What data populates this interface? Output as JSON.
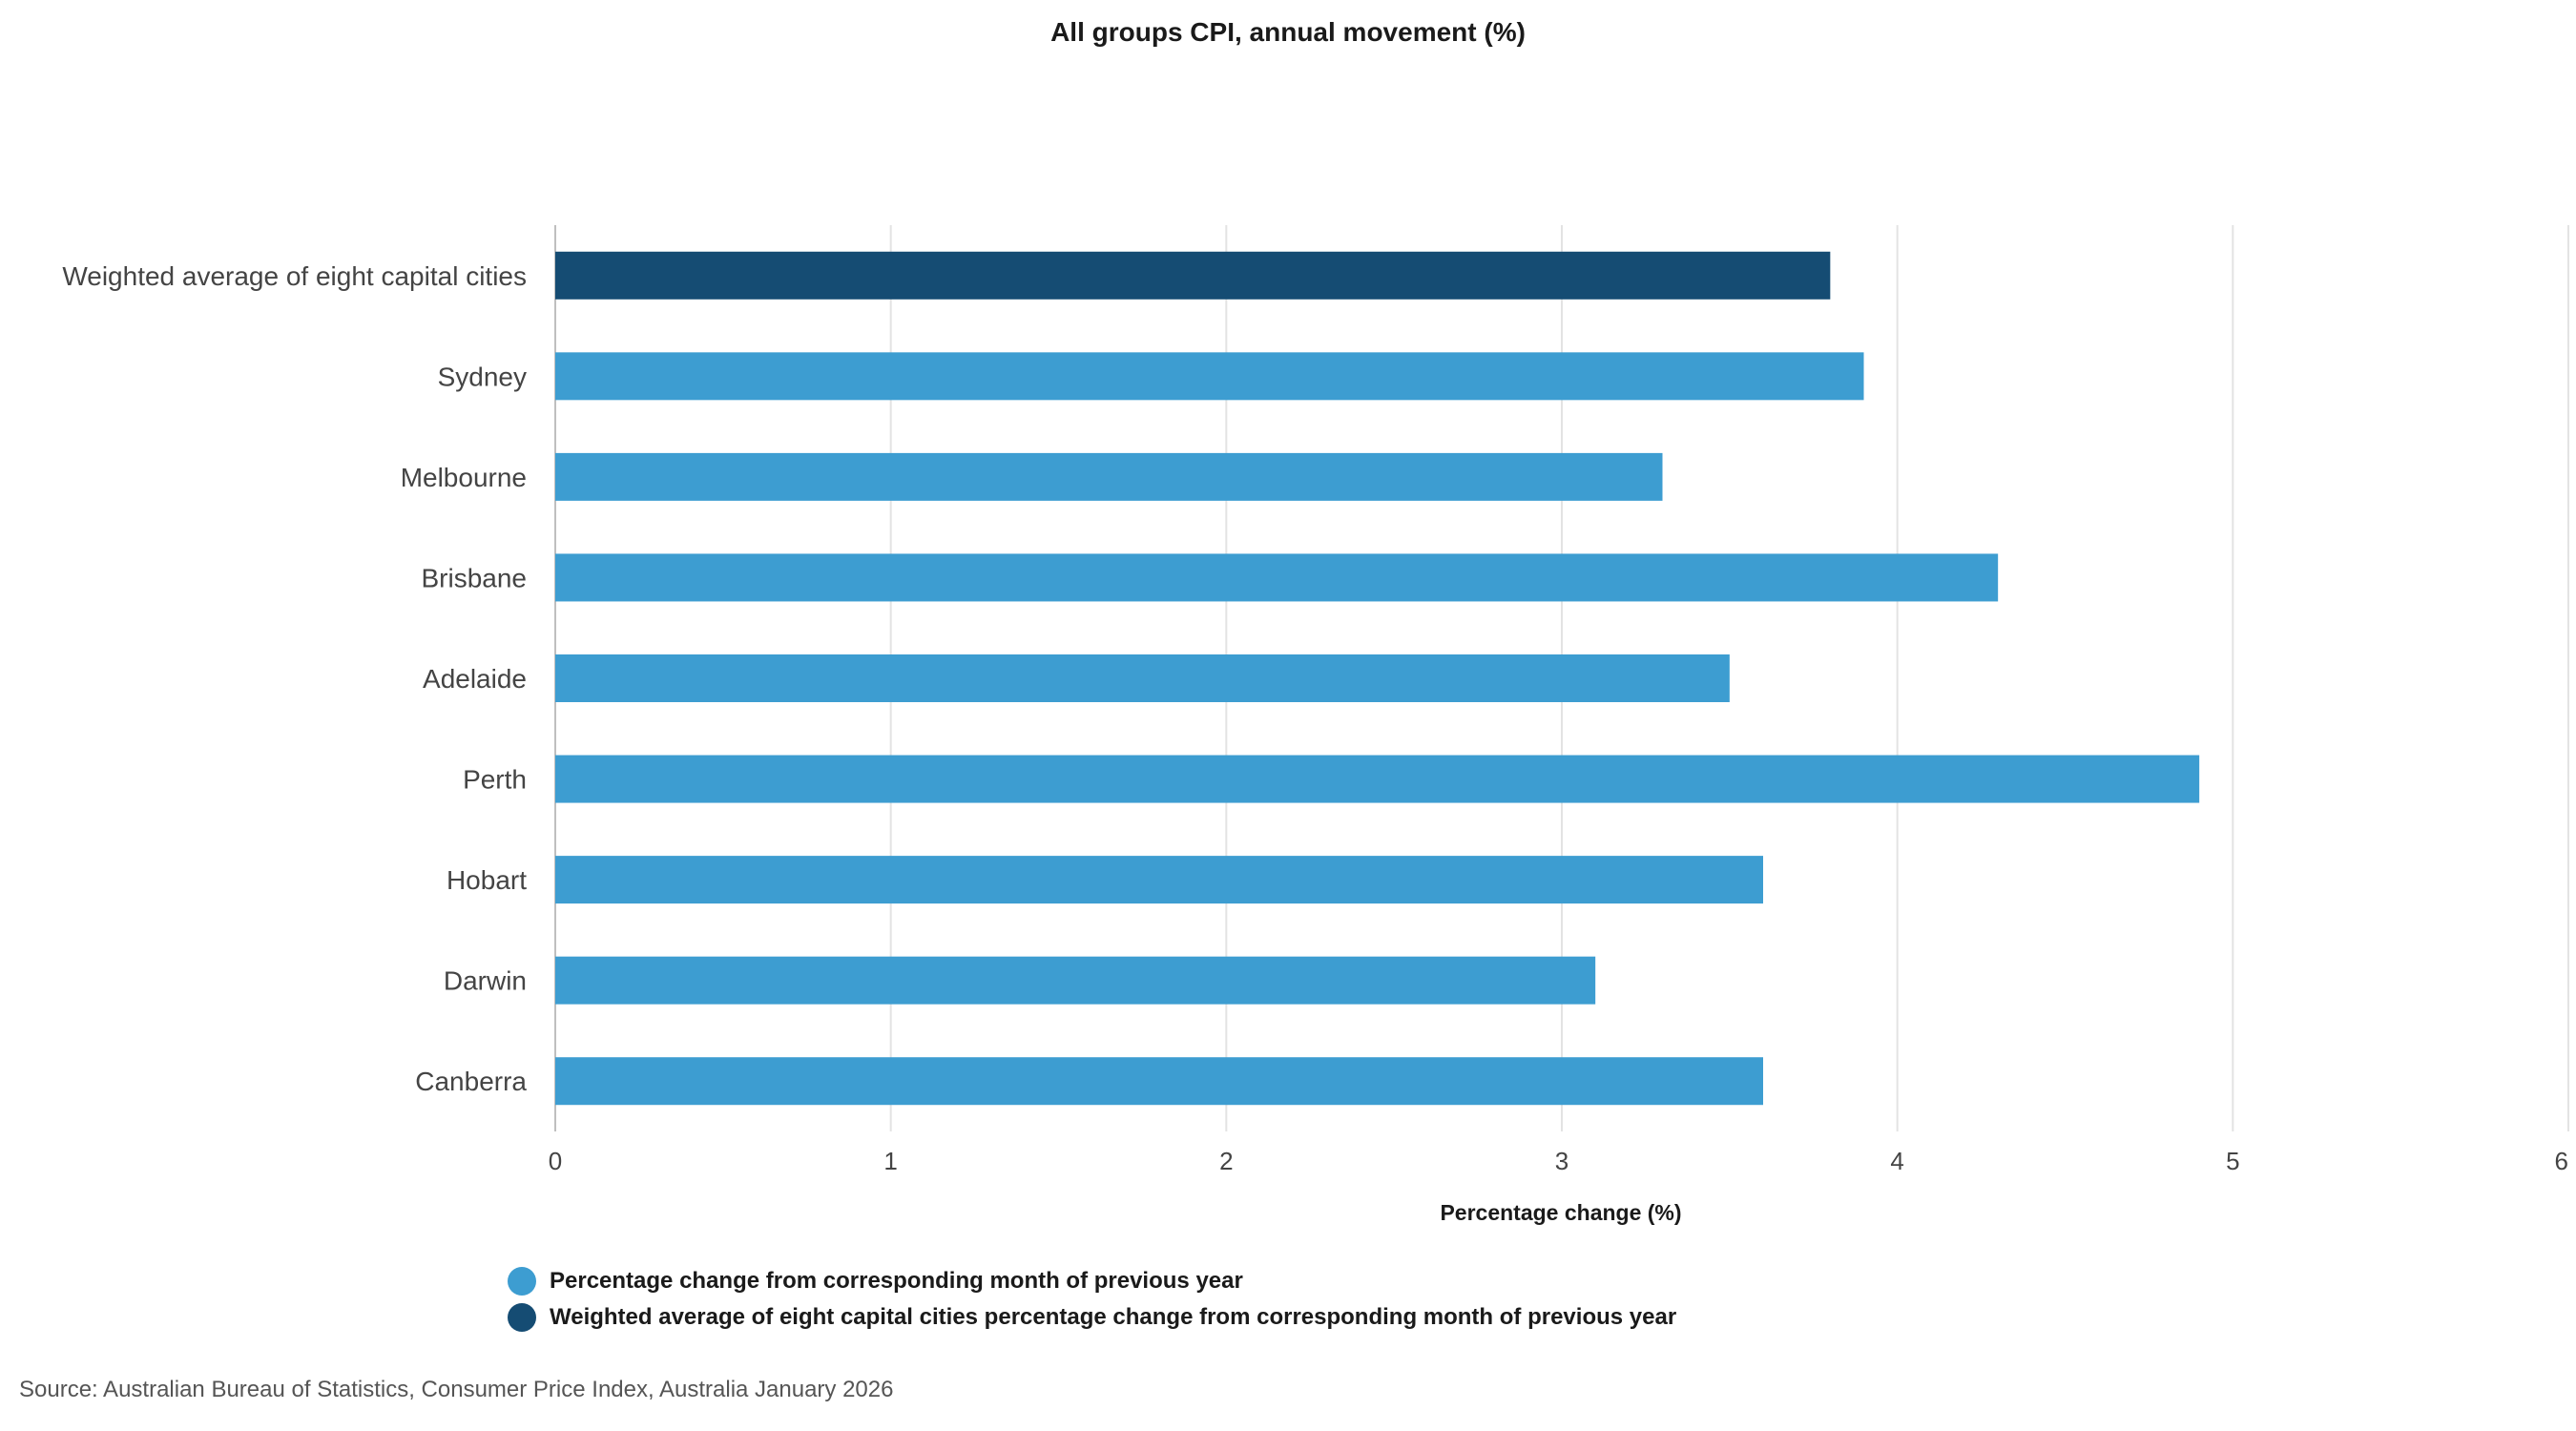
{
  "chart_data": {
    "type": "bar",
    "orientation": "horizontal",
    "title": "All groups CPI, annual movement (%)",
    "xlabel": "Percentage change (%)",
    "ylabel": "",
    "xlim": [
      0,
      6
    ],
    "x_ticks": [
      "0",
      "1",
      "2",
      "3",
      "4",
      "5",
      "6"
    ],
    "grid": true,
    "legend_position": "bottom-left",
    "categories": [
      "Weighted average of eight capital cities",
      "Sydney",
      "Melbourne",
      "Brisbane",
      "Adelaide",
      "Perth",
      "Hobart",
      "Darwin",
      "Canberra"
    ],
    "values": [
      3.8,
      3.9,
      3.3,
      4.3,
      3.5,
      4.9,
      3.6,
      3.1,
      3.6
    ],
    "series": [
      {
        "name": "Percentage change from corresponding month of previous year",
        "color": "#3d9dd1"
      },
      {
        "name": "Weighted average of eight capital cities percentage change from corresponding month of previous year",
        "color": "#154c73"
      }
    ],
    "bar_series_index": [
      1,
      0,
      0,
      0,
      0,
      0,
      0,
      0,
      0
    ]
  },
  "source": "Source: Australian Bureau of Statistics, Consumer Price Index, Australia January 2026"
}
